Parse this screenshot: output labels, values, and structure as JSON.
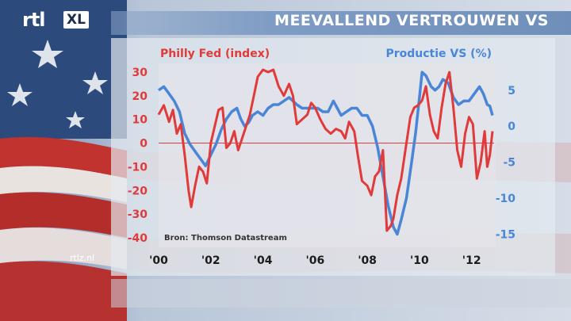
{
  "brand": {
    "logo_main": "rtl",
    "logo_sub": "XL",
    "site": "rtlz.nl"
  },
  "chart_data": {
    "type": "line",
    "title": "MEEVALLEND VERTROUWEN VS",
    "source": "Bron: Thomson Datastream",
    "xlim": [
      2000,
      2012.8
    ],
    "x_ticks": [
      {
        "value": 2000,
        "label": "'00"
      },
      {
        "value": 2002,
        "label": "'02"
      },
      {
        "value": 2004,
        "label": "'04"
      },
      {
        "value": 2006,
        "label": "'06"
      },
      {
        "value": 2008,
        "label": "'08"
      },
      {
        "value": 2010,
        "label": "'10"
      },
      {
        "value": 2012,
        "label": "'12"
      }
    ],
    "y_left": {
      "label": "Philly Fed (index)",
      "ylim": [
        -40,
        33
      ],
      "ticks": [
        30,
        20,
        10,
        0,
        -10,
        -20,
        -30,
        -40
      ]
    },
    "y_right": {
      "label": "Productie VS (%)",
      "ylim": [
        -15.5,
        8.5
      ],
      "ticks": [
        5,
        0,
        -5,
        -10,
        -15
      ]
    },
    "colors": {
      "left": "#e03a3a",
      "right": "#4a86d8",
      "zero_line": "#e03a3a"
    },
    "series": [
      {
        "name": "Philly Fed (index)",
        "axis": "left",
        "points": [
          [
            2000.0,
            12
          ],
          [
            2000.2,
            16
          ],
          [
            2000.4,
            9
          ],
          [
            2000.55,
            14
          ],
          [
            2000.7,
            4
          ],
          [
            2000.85,
            8
          ],
          [
            2001.0,
            -5
          ],
          [
            2001.15,
            -20
          ],
          [
            2001.25,
            -27
          ],
          [
            2001.4,
            -18
          ],
          [
            2001.55,
            -10
          ],
          [
            2001.7,
            -12
          ],
          [
            2001.85,
            -17
          ],
          [
            2002.0,
            0
          ],
          [
            2002.15,
            7
          ],
          [
            2002.3,
            14
          ],
          [
            2002.45,
            15
          ],
          [
            2002.6,
            -2
          ],
          [
            2002.75,
            0
          ],
          [
            2002.9,
            5
          ],
          [
            2003.05,
            -3
          ],
          [
            2003.2,
            2
          ],
          [
            2003.35,
            7
          ],
          [
            2003.5,
            12
          ],
          [
            2003.65,
            20
          ],
          [
            2003.8,
            28
          ],
          [
            2004.0,
            31
          ],
          [
            2004.2,
            30
          ],
          [
            2004.4,
            31
          ],
          [
            2004.6,
            24
          ],
          [
            2004.8,
            20
          ],
          [
            2005.0,
            25
          ],
          [
            2005.15,
            20
          ],
          [
            2005.3,
            8
          ],
          [
            2005.5,
            10
          ],
          [
            2005.7,
            12
          ],
          [
            2005.85,
            17
          ],
          [
            2006.0,
            15
          ],
          [
            2006.2,
            10
          ],
          [
            2006.4,
            6
          ],
          [
            2006.6,
            4
          ],
          [
            2006.8,
            6
          ],
          [
            2007.0,
            5
          ],
          [
            2007.15,
            2
          ],
          [
            2007.3,
            9
          ],
          [
            2007.5,
            5
          ],
          [
            2007.65,
            -6
          ],
          [
            2007.8,
            -16
          ],
          [
            2008.0,
            -18
          ],
          [
            2008.15,
            -22
          ],
          [
            2008.3,
            -14
          ],
          [
            2008.45,
            -12
          ],
          [
            2008.6,
            -3
          ],
          [
            2008.75,
            -37
          ],
          [
            2008.9,
            -35
          ],
          [
            2009.0,
            -32
          ],
          [
            2009.15,
            -22
          ],
          [
            2009.3,
            -15
          ],
          [
            2009.5,
            0
          ],
          [
            2009.65,
            11
          ],
          [
            2009.8,
            15
          ],
          [
            2009.95,
            16
          ],
          [
            2010.1,
            18
          ],
          [
            2010.25,
            24
          ],
          [
            2010.4,
            12
          ],
          [
            2010.55,
            5
          ],
          [
            2010.7,
            2
          ],
          [
            2010.85,
            15
          ],
          [
            2011.0,
            25
          ],
          [
            2011.15,
            30
          ],
          [
            2011.3,
            15
          ],
          [
            2011.45,
            -3
          ],
          [
            2011.6,
            -10
          ],
          [
            2011.75,
            4
          ],
          [
            2011.9,
            11
          ],
          [
            2012.05,
            8
          ],
          [
            2012.2,
            -15
          ],
          [
            2012.35,
            -8
          ],
          [
            2012.5,
            5
          ],
          [
            2012.6,
            -10
          ],
          [
            2012.7,
            -5
          ],
          [
            2012.8,
            5
          ]
        ]
      },
      {
        "name": "Productie VS (%)",
        "axis": "right",
        "points": [
          [
            2000.0,
            5
          ],
          [
            2000.2,
            5.5
          ],
          [
            2000.4,
            4.5
          ],
          [
            2000.6,
            3.5
          ],
          [
            2000.8,
            2
          ],
          [
            2001.0,
            -1
          ],
          [
            2001.2,
            -2.5
          ],
          [
            2001.4,
            -3.5
          ],
          [
            2001.6,
            -4.5
          ],
          [
            2001.8,
            -5.5
          ],
          [
            2002.0,
            -4
          ],
          [
            2002.2,
            -2.5
          ],
          [
            2002.4,
            -0.5
          ],
          [
            2002.6,
            1
          ],
          [
            2002.8,
            2
          ],
          [
            2003.0,
            2.5
          ],
          [
            2003.15,
            1
          ],
          [
            2003.3,
            0
          ],
          [
            2003.45,
            0.5
          ],
          [
            2003.6,
            1.5
          ],
          [
            2003.8,
            2
          ],
          [
            2004.0,
            1.5
          ],
          [
            2004.2,
            2.5
          ],
          [
            2004.4,
            3
          ],
          [
            2004.6,
            3
          ],
          [
            2004.8,
            3.5
          ],
          [
            2005.0,
            4
          ],
          [
            2005.15,
            3.5
          ],
          [
            2005.3,
            3
          ],
          [
            2005.5,
            2.5
          ],
          [
            2005.7,
            2.5
          ],
          [
            2005.9,
            2.5
          ],
          [
            2006.1,
            2.5
          ],
          [
            2006.3,
            2
          ],
          [
            2006.5,
            2
          ],
          [
            2006.7,
            3.5
          ],
          [
            2006.85,
            2.5
          ],
          [
            2007.0,
            1.5
          ],
          [
            2007.2,
            2
          ],
          [
            2007.4,
            2.5
          ],
          [
            2007.6,
            2.5
          ],
          [
            2007.8,
            1.5
          ],
          [
            2008.0,
            1.5
          ],
          [
            2008.2,
            0
          ],
          [
            2008.4,
            -3
          ],
          [
            2008.6,
            -7
          ],
          [
            2008.8,
            -11
          ],
          [
            2009.0,
            -14
          ],
          [
            2009.15,
            -15
          ],
          [
            2009.3,
            -13
          ],
          [
            2009.5,
            -10
          ],
          [
            2009.7,
            -5
          ],
          [
            2009.85,
            -1
          ],
          [
            2010.0,
            4
          ],
          [
            2010.1,
            7.5
          ],
          [
            2010.25,
            7
          ],
          [
            2010.45,
            5.5
          ],
          [
            2010.6,
            5
          ],
          [
            2010.75,
            5.5
          ],
          [
            2010.9,
            6.5
          ],
          [
            2011.1,
            6
          ],
          [
            2011.3,
            4
          ],
          [
            2011.5,
            3
          ],
          [
            2011.7,
            3.5
          ],
          [
            2011.9,
            3.5
          ],
          [
            2012.1,
            4.5
          ],
          [
            2012.3,
            5.5
          ],
          [
            2012.45,
            4.5
          ],
          [
            2012.6,
            3
          ],
          [
            2012.7,
            2.8
          ],
          [
            2012.8,
            1.5
          ]
        ]
      }
    ]
  }
}
